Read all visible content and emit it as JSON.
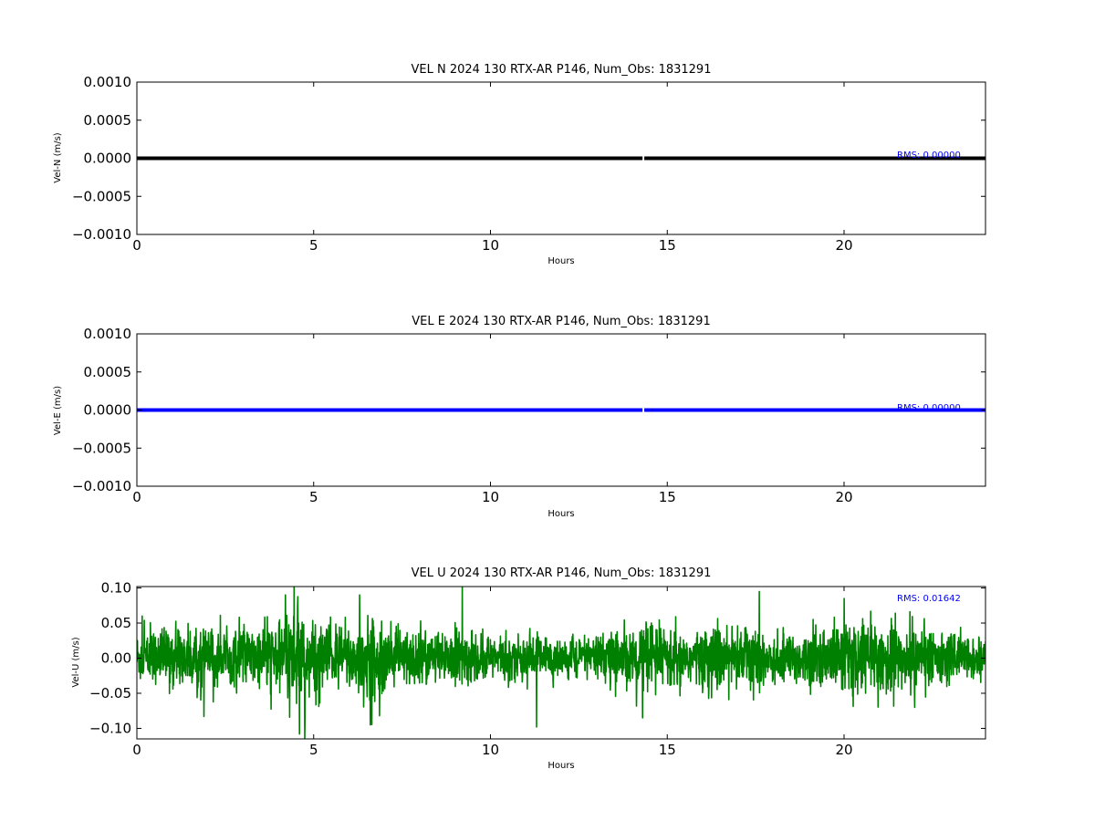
{
  "chart_data": [
    {
      "type": "line",
      "title": "VEL N 2024 130 RTX-AR  P146, Num_Obs: 1831291",
      "xlabel": "Hours",
      "ylabel": "Vel-N (m/s)",
      "xlim": [
        0,
        24
      ],
      "ylim": [
        -0.001,
        0.001
      ],
      "xticks": [
        0,
        5,
        10,
        15,
        20
      ],
      "xtick_labels": [
        "0",
        "5",
        "10",
        "15",
        "20"
      ],
      "yticks": [
        0.001,
        0.0005,
        0.0,
        -0.0005,
        -0.001
      ],
      "ytick_labels": [
        "0.0010",
        "0.0005",
        "0.0000",
        "−0.0005",
        "−0.0010"
      ],
      "grid": false,
      "annotation": "RMS:  0.00000",
      "annotation_color": "#0000ff",
      "series": [
        {
          "color": "#000000",
          "x": [
            0,
            14.3,
            14.35,
            24
          ],
          "y": [
            0,
            0,
            0,
            0
          ],
          "gap_after_index": 1
        }
      ]
    },
    {
      "type": "line",
      "title": "VEL E 2024 130 RTX-AR  P146, Num_Obs: 1831291",
      "xlabel": "Hours",
      "ylabel": "Vel-E (m/s)",
      "xlim": [
        0,
        24
      ],
      "ylim": [
        -0.001,
        0.001
      ],
      "xticks": [
        0,
        5,
        10,
        15,
        20
      ],
      "xtick_labels": [
        "0",
        "5",
        "10",
        "15",
        "20"
      ],
      "yticks": [
        0.001,
        0.0005,
        0.0,
        -0.0005,
        -0.001
      ],
      "ytick_labels": [
        "0.0010",
        "0.0005",
        "0.0000",
        "−0.0005",
        "−0.0010"
      ],
      "grid": false,
      "annotation": "RMS:  0.00000",
      "annotation_color": "#0000ff",
      "series": [
        {
          "color": "#0000ff",
          "x": [
            0,
            14.3,
            14.35,
            24
          ],
          "y": [
            0,
            0,
            0,
            0
          ],
          "gap_after_index": 1
        }
      ]
    },
    {
      "type": "line",
      "title": "VEL U 2024 130 RTX-AR  P146, Num_Obs: 1831291",
      "xlabel": "Hours",
      "ylabel": "Vel-U (m/s)",
      "xlim": [
        0,
        24
      ],
      "ylim": [
        -0.115,
        0.102
      ],
      "xticks": [
        0,
        5,
        10,
        15,
        20
      ],
      "xtick_labels": [
        "0",
        "5",
        "10",
        "15",
        "20"
      ],
      "yticks": [
        0.1,
        0.05,
        0.0,
        -0.05,
        -0.1
      ],
      "ytick_labels": [
        "0.10",
        "0.05",
        "0.00",
        "−0.05",
        "−0.10"
      ],
      "grid": false,
      "annotation": "RMS:  0.01642",
      "annotation_color": "#0000ff",
      "series": [
        {
          "color": "#008000",
          "noise_rms": 0.01642,
          "envelope": [
            [
              0,
              0.04
            ],
            [
              1,
              0.045
            ],
            [
              2,
              0.045
            ],
            [
              3,
              0.04
            ],
            [
              4,
              0.055
            ],
            [
              4.5,
              0.075
            ],
            [
              5,
              0.055
            ],
            [
              6,
              0.05
            ],
            [
              6.5,
              0.075
            ],
            [
              7,
              0.05
            ],
            [
              8,
              0.04
            ],
            [
              9,
              0.045
            ],
            [
              10,
              0.035
            ],
            [
              11,
              0.035
            ],
            [
              12,
              0.03
            ],
            [
              13,
              0.035
            ],
            [
              14,
              0.04
            ],
            [
              14.3,
              0.06
            ],
            [
              15,
              0.04
            ],
            [
              16,
              0.045
            ],
            [
              17,
              0.05
            ],
            [
              18,
              0.045
            ],
            [
              19,
              0.04
            ],
            [
              20,
              0.05
            ],
            [
              21,
              0.055
            ],
            [
              22,
              0.045
            ],
            [
              23,
              0.035
            ],
            [
              24,
              0.03
            ]
          ],
          "spikes": [
            [
              4.2,
              0.09
            ],
            [
              4.45,
              0.102
            ],
            [
              4.6,
              -0.108
            ],
            [
              4.75,
              -0.115
            ],
            [
              6.3,
              0.09
            ],
            [
              6.6,
              -0.095
            ],
            [
              9.2,
              0.102
            ],
            [
              11.3,
              -0.098
            ],
            [
              14.3,
              -0.085
            ],
            [
              17.6,
              0.095
            ],
            [
              20.0,
              0.085
            ],
            [
              1.9,
              -0.083
            ],
            [
              0.15,
              0.06
            ],
            [
              22.0,
              -0.07
            ]
          ]
        }
      ]
    }
  ]
}
